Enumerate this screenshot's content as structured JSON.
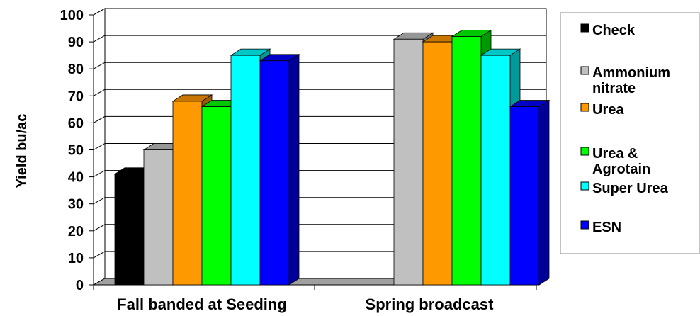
{
  "chart_data": {
    "type": "bar",
    "style": "3d-clustered",
    "ylabel": "Yield bu/ac",
    "xlabel": "",
    "title": "",
    "ylim": [
      0,
      100
    ],
    "yticks": [
      0,
      10,
      20,
      30,
      40,
      50,
      60,
      70,
      80,
      90,
      100
    ],
    "grid": true,
    "legend_position": "right",
    "categories": [
      "Fall banded at Seeding",
      "Spring broadcast"
    ],
    "series": [
      {
        "name": "Check",
        "color": "#000000",
        "values": [
          41,
          0
        ]
      },
      {
        "name": "Ammonium nitrate",
        "color": "#c0c0c0",
        "values": [
          50,
          91
        ]
      },
      {
        "name": "Urea",
        "color": "#ff9900",
        "values": [
          68,
          90
        ]
      },
      {
        "name": "Urea & Agrotain",
        "color": "#00ff00",
        "values": [
          66,
          92
        ]
      },
      {
        "name": "Super Urea",
        "color": "#00ffff",
        "values": [
          85,
          85
        ]
      },
      {
        "name": "ESN",
        "color": "#0000ff",
        "values": [
          83,
          66
        ]
      }
    ],
    "legend_labels": [
      [
        "Check"
      ],
      [
        "Ammonium",
        "nitrate"
      ],
      [
        "Urea"
      ],
      [
        "Urea &",
        "Agrotain"
      ],
      [
        "Super Urea"
      ],
      [
        "ESN"
      ]
    ]
  }
}
